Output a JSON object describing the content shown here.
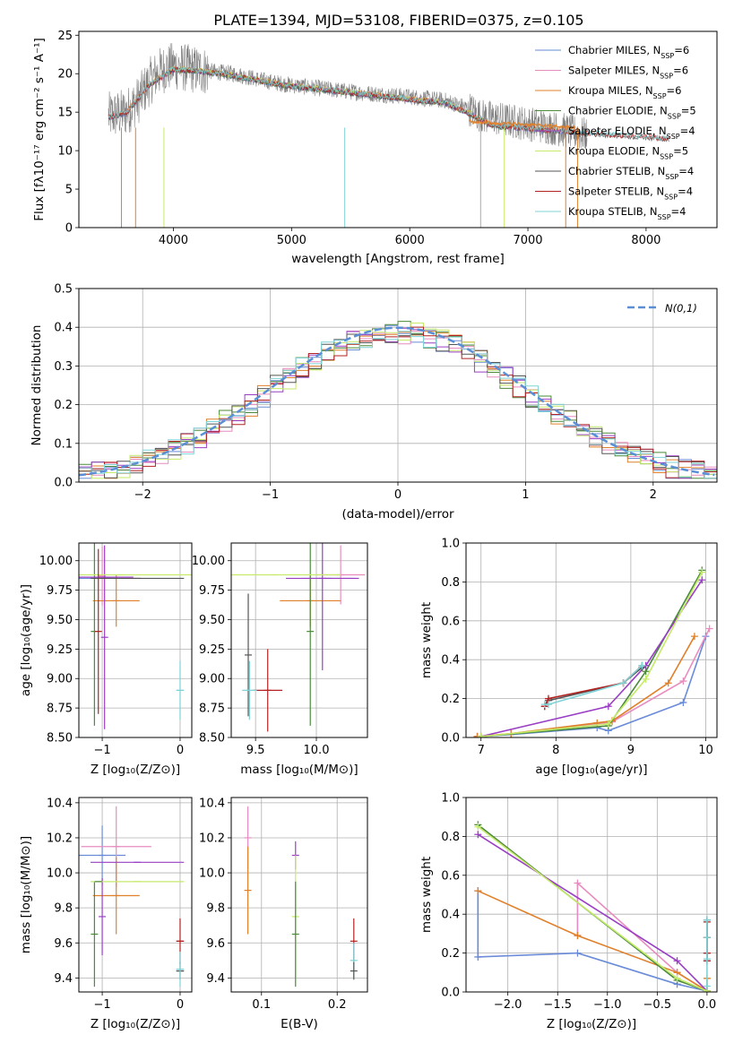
{
  "page": {
    "title": "PLATE=1394, MJD=53108, FIBERID=0375, z=0.105"
  },
  "colors": {
    "Chabrier MILES": "#6a8bd8",
    "Salpeter MILES": "#e88cbf",
    "Kroupa MILES": "#e0802a",
    "Chabrier ELODIE": "#4a8a3a",
    "Salpeter ELODIE": "#9a3fc4",
    "Kroupa ELODIE": "#c6ea6a",
    "Chabrier STELIB": "#555555",
    "Salpeter STELIB": "#b22222",
    "Kroupa STELIB": "#7fd3d6",
    "data": "#808080",
    "normal": "#5a8fd6",
    "grid": "#b0b0b0"
  },
  "chart_data": [
    {
      "id": "spectrum",
      "type": "line",
      "title": "",
      "xlabel": "wavelength [Angstrom, rest frame]",
      "ylabel": "Flux [fλ10⁻¹⁷ erg cm⁻² s⁻¹ A⁻¹]",
      "xlim": [
        3200,
        8600
      ],
      "ylim": [
        0,
        25.5
      ],
      "xticks": [
        4000,
        5000,
        6000,
        7000,
        8000
      ],
      "yticks": [
        0,
        5,
        10,
        15,
        20,
        25
      ],
      "grid": false,
      "legend_position": "top-right",
      "legend": [
        "Chabrier MILES, N_SSP=6",
        "Salpeter MILES, N_SSP=6",
        "Kroupa MILES, N_SSP=6",
        "Chabrier ELODIE, N_SSP=5",
        "Salpeter ELODIE, N_SSP=4",
        "Kroupa ELODIE, N_SSP=5",
        "Chabrier STELIB, N_SSP=4",
        "Salpeter STELIB, N_SSP=4",
        "Kroupa STELIB, N_SSP=4"
      ],
      "continuum": {
        "x": [
          3450,
          3600,
          3700,
          3800,
          3900,
          4000,
          4200,
          4500,
          4800,
          5000,
          5300,
          5600,
          6000,
          6300,
          6500,
          6600,
          6800,
          7000,
          7200,
          7500
        ],
        "y": [
          14.5,
          15,
          16.5,
          19,
          20.5,
          21,
          20.5,
          20,
          19,
          18.5,
          18,
          17.5,
          17,
          16.5,
          15.5,
          14.5,
          14,
          13.5,
          13,
          12
        ]
      },
      "model_continuum": {
        "x": [
          3450,
          3600,
          3800,
          4000,
          4200,
          4500,
          4800,
          5000,
          5300,
          5600,
          6000,
          6300,
          6500,
          6700,
          7000,
          7500,
          8200
        ],
        "y": [
          14.3,
          14.8,
          18.5,
          20.5,
          20.3,
          19.7,
          18.8,
          18.3,
          17.8,
          17.3,
          16.6,
          16.1,
          14.8,
          13.2,
          12.8,
          12.2,
          11.5
        ]
      },
      "kroupa_miles_red": {
        "x": [
          6500,
          6700,
          7000,
          7200,
          7400
        ],
        "y": [
          13.8,
          13.6,
          13.4,
          13.2,
          13.0
        ]
      }
    },
    {
      "id": "residuals",
      "type": "line",
      "title": "",
      "xlabel": "(data-model)/error",
      "ylabel": "Normed distribution",
      "xlim": [
        -2.5,
        2.5
      ],
      "ylim": [
        0,
        0.5
      ],
      "xticks": [
        -2,
        -1,
        0,
        1,
        2
      ],
      "yticks": [
        0.0,
        0.1,
        0.2,
        0.3,
        0.4,
        0.5
      ],
      "grid": true,
      "legend_position": "top-right",
      "legend": [
        "N(0,1)"
      ],
      "bin_width": 0.1
    },
    {
      "id": "age-Z",
      "type": "scatter",
      "title": "",
      "xlabel": "Z [log₁₀(Z/Z⊙)]",
      "ylabel": "age  [log₁₀(age/yr)]",
      "xlim": [
        -1.3,
        0.15
      ],
      "ylim": [
        8.5,
        10.15
      ],
      "xticks": [
        -1,
        0
      ],
      "yticks": [
        8.5,
        8.75,
        9.0,
        9.25,
        9.5,
        9.75,
        10.0
      ],
      "grid": true,
      "points": [
        {
          "model": "Chabrier MILES",
          "x": -1.05,
          "y": 9.85,
          "xerr": 0.25,
          "yerr": 0.0
        },
        {
          "model": "Salpeter MILES",
          "x": -1.0,
          "y": 9.87,
          "xerr": 0.0,
          "yerr": 0.25
        },
        {
          "model": "Kroupa MILES",
          "x": -0.82,
          "y": 9.66,
          "xerr": 0.3,
          "yerr": 0.22
        },
        {
          "model": "Chabrier ELODIE",
          "x": -1.1,
          "y": 9.4,
          "xerr": 0.0,
          "yerr": 0.8
        },
        {
          "model": "Salpeter ELODIE",
          "x": -0.95,
          "y": 9.86,
          "xerr": 0.35,
          "yerr": 0.0
        },
        {
          "model": "Salpeter ELODIE",
          "x": -0.97,
          "y": 9.35,
          "xerr": 0.0,
          "yerr": 0.78
        },
        {
          "model": "Kroupa ELODIE",
          "x": -0.75,
          "y": 9.88,
          "xerr": 0.92,
          "yerr": 0.0
        },
        {
          "model": "Chabrier STELIB",
          "x": -0.55,
          "y": 9.85,
          "xerr": 0.6,
          "yerr": 0.0
        },
        {
          "model": "Salpeter STELIB",
          "x": -1.05,
          "y": 9.4,
          "xerr": 0.0,
          "yerr": 0.7
        },
        {
          "model": "Kroupa STELIB",
          "x": 0.0,
          "y": 8.9,
          "xerr": 0.05,
          "yerr": 0.25
        }
      ]
    },
    {
      "id": "age-mass",
      "type": "scatter",
      "title": "",
      "xlabel": "mass [log₁₀(M/M⊙)]",
      "ylabel": "",
      "xlim": [
        9.3,
        10.42
      ],
      "ylim": [
        8.5,
        10.15
      ],
      "xticks": [
        9.5,
        10.0
      ],
      "yticks": [
        8.5,
        8.75,
        9.0,
        9.25,
        9.5,
        9.75,
        10.0
      ],
      "grid": true,
      "points": [
        {
          "model": "Chabrier MILES",
          "x": 10.1,
          "y": 9.85,
          "xerr": 0.22,
          "yerr": 0.0
        },
        {
          "model": "Salpeter MILES",
          "x": 10.2,
          "y": 9.88,
          "xerr": 0.2,
          "yerr": 0.25
        },
        {
          "model": "Kroupa MILES",
          "x": 9.95,
          "y": 9.66,
          "xerr": 0.25,
          "yerr": 0.22
        },
        {
          "model": "Chabrier ELODIE",
          "x": 9.95,
          "y": 9.4,
          "xerr": 0.0,
          "yerr": 0.8
        },
        {
          "model": "Salpeter ELODIE",
          "x": 10.05,
          "y": 9.85,
          "xerr": 0.3,
          "yerr": 0.78
        },
        {
          "model": "Kroupa ELODIE",
          "x": 9.65,
          "y": 9.88,
          "xerr": 0.55,
          "yerr": 0.0
        },
        {
          "model": "Chabrier STELIB",
          "x": 9.44,
          "y": 9.2,
          "xerr": 0.0,
          "yerr": 0.52
        },
        {
          "model": "Salpeter STELIB",
          "x": 9.6,
          "y": 8.9,
          "xerr": 0.12,
          "yerr": 0.35
        },
        {
          "model": "Kroupa STELIB",
          "x": 9.45,
          "y": 8.9,
          "xerr": 0.06,
          "yerr": 0.25
        }
      ]
    },
    {
      "id": "massweight-age",
      "type": "line",
      "title": "",
      "xlabel": "age  [log₁₀(age/yr)]",
      "ylabel": "mass weight",
      "xlim": [
        6.8,
        10.15
      ],
      "ylim": [
        0,
        1
      ],
      "xticks": [
        7,
        8,
        9,
        10
      ],
      "yticks": [
        0.0,
        0.2,
        0.4,
        0.6,
        0.8,
        1.0
      ],
      "grid": true,
      "series": [
        {
          "name": "Chabrier MILES",
          "x": [
            6.95,
            7.4,
            8.55,
            8.7,
            9.7,
            10.0
          ],
          "y": [
            0.005,
            0.015,
            0.05,
            0.035,
            0.18,
            0.52
          ]
        },
        {
          "name": "Salpeter MILES",
          "x": [
            6.95,
            7.4,
            8.55,
            8.75,
            9.7,
            10.05
          ],
          "y": [
            0.005,
            0.02,
            0.07,
            0.08,
            0.29,
            0.56
          ]
        },
        {
          "name": "Kroupa MILES",
          "x": [
            6.95,
            7.4,
            8.55,
            8.75,
            9.5,
            9.85
          ],
          "y": [
            0.005,
            0.02,
            0.075,
            0.085,
            0.28,
            0.52
          ]
        },
        {
          "name": "Chabrier ELODIE",
          "x": [
            7.0,
            8.7,
            9.2,
            9.95
          ],
          "y": [
            0.005,
            0.06,
            0.34,
            0.86
          ]
        },
        {
          "name": "Salpeter ELODIE",
          "x": [
            7.0,
            8.7,
            9.2,
            9.95
          ],
          "y": [
            0.005,
            0.16,
            0.37,
            0.81
          ]
        },
        {
          "name": "Kroupa ELODIE",
          "x": [
            7.0,
            8.7,
            9.2,
            9.95
          ],
          "y": [
            0.005,
            0.07,
            0.3,
            0.85
          ]
        },
        {
          "name": "Chabrier STELIB",
          "x": [
            7.85,
            7.9,
            8.9,
            9.15
          ],
          "y": [
            0.16,
            0.19,
            0.28,
            0.36
          ]
        },
        {
          "name": "Salpeter STELIB",
          "x": [
            7.85,
            7.9,
            8.9,
            9.15
          ],
          "y": [
            0.16,
            0.2,
            0.28,
            0.37
          ]
        },
        {
          "name": "Kroupa STELIB",
          "x": [
            7.85,
            7.9,
            8.9,
            9.15
          ],
          "y": [
            0.17,
            0.17,
            0.28,
            0.37
          ]
        }
      ]
    },
    {
      "id": "mass-Z",
      "type": "scatter",
      "title": "",
      "xlabel": "Z [log₁₀(Z/Z⊙)]",
      "ylabel": "mass [log₁₀(M/M⊙)]",
      "xlim": [
        -1.3,
        0.15
      ],
      "ylim": [
        9.32,
        10.43
      ],
      "xticks": [
        -1,
        0
      ],
      "yticks": [
        9.4,
        9.6,
        9.8,
        10.0,
        10.2,
        10.4
      ],
      "grid": true,
      "points": [
        {
          "model": "Chabrier MILES",
          "x": -1.0,
          "y": 10.1,
          "xerr": 0.3,
          "yerr": 0.17
        },
        {
          "model": "Salpeter MILES",
          "x": -0.82,
          "y": 10.15,
          "xerr": 0.45,
          "yerr": 0.23
        },
        {
          "model": "Kroupa MILES",
          "x": -0.82,
          "y": 9.87,
          "xerr": 0.3,
          "yerr": 0.22
        },
        {
          "model": "Chabrier ELODIE",
          "x": -1.1,
          "y": 9.65,
          "xerr": 0.0,
          "yerr": 0.3
        },
        {
          "model": "Salpeter ELODIE",
          "x": -1.0,
          "y": 9.75,
          "xerr": 0.0,
          "yerr": 0.22
        },
        {
          "model": "Salpeter ELODIE",
          "x": -0.55,
          "y": 10.06,
          "xerr": 0.6,
          "yerr": 0.0
        },
        {
          "model": "Kroupa ELODIE",
          "x": -0.55,
          "y": 9.95,
          "xerr": 0.6,
          "yerr": 0.0
        },
        {
          "model": "Chabrier ELODIE",
          "x": -1.05,
          "y": 9.95,
          "xerr": 0.0,
          "yerr": 0.0
        },
        {
          "model": "Chabrier STELIB",
          "x": 0.0,
          "y": 9.44,
          "xerr": 0.05,
          "yerr": 0.05
        },
        {
          "model": "Salpeter STELIB",
          "x": 0.0,
          "y": 9.61,
          "xerr": 0.05,
          "yerr": 0.13
        },
        {
          "model": "Kroupa STELIB",
          "x": 0.0,
          "y": 9.45,
          "xerr": 0.05,
          "yerr": 0.1
        }
      ]
    },
    {
      "id": "mass-EBV",
      "type": "scatter",
      "title": "",
      "xlabel": "E(B-V)",
      "ylabel": "",
      "xlim": [
        0.06,
        0.24
      ],
      "ylim": [
        9.32,
        10.43
      ],
      "xticks": [
        0.1,
        0.2
      ],
      "yticks": [
        9.4,
        9.6,
        9.8,
        10.0,
        10.2,
        10.4
      ],
      "grid": true,
      "points": [
        {
          "model": "Salpeter MILES",
          "x": 0.082,
          "y": 10.2,
          "xerr": 0,
          "yerr": 0.18
        },
        {
          "model": "Kroupa MILES",
          "x": 0.082,
          "y": 9.9,
          "xerr": 0,
          "yerr": 0.25
        },
        {
          "model": "Salpeter ELODIE",
          "x": 0.145,
          "y": 10.1,
          "xerr": 0,
          "yerr": 0.08
        },
        {
          "model": "Kroupa ELODIE",
          "x": 0.145,
          "y": 9.75,
          "xerr": 0,
          "yerr": 0.35
        },
        {
          "model": "Chabrier ELODIE",
          "x": 0.145,
          "y": 9.65,
          "xerr": 0,
          "yerr": 0.3
        },
        {
          "model": "Salpeter STELIB",
          "x": 0.222,
          "y": 9.61,
          "xerr": 0,
          "yerr": 0.13
        },
        {
          "model": "Kroupa STELIB",
          "x": 0.222,
          "y": 9.5,
          "xerr": 0,
          "yerr": 0.1
        },
        {
          "model": "Chabrier STELIB",
          "x": 0.222,
          "y": 9.44,
          "xerr": 0,
          "yerr": 0.05
        }
      ]
    },
    {
      "id": "massweight-Z",
      "type": "line",
      "title": "",
      "xlabel": "Z [log₁₀(Z/Z⊙)]",
      "ylabel": "mass weight",
      "xlim": [
        -2.42,
        0.1
      ],
      "ylim": [
        0,
        1
      ],
      "xticks": [
        -2.0,
        -1.5,
        -1.0,
        -0.5,
        0.0
      ],
      "yticks": [
        0.0,
        0.2,
        0.4,
        0.6,
        0.8,
        1.0
      ],
      "grid": true,
      "series": [
        {
          "name": "Chabrier MILES",
          "x": [
            -2.3,
            -2.3,
            -1.3,
            -0.3,
            0.0
          ],
          "y": [
            0.52,
            0.18,
            0.2,
            0.04,
            0.005
          ]
        },
        {
          "name": "Salpeter MILES",
          "x": [
            -1.3,
            -1.3,
            -0.3,
            0.0
          ],
          "y": [
            0.29,
            0.56,
            0.1,
            0.005
          ]
        },
        {
          "name": "Kroupa MILES",
          "x": [
            -2.3,
            -1.3,
            -0.3,
            0.0,
            0.0
          ],
          "y": [
            0.52,
            0.29,
            0.1,
            0.005,
            0.07
          ]
        },
        {
          "name": "Chabrier ELODIE",
          "x": [
            -2.3,
            -0.3,
            0.0
          ],
          "y": [
            0.86,
            0.06,
            0.005
          ]
        },
        {
          "name": "Salpeter ELODIE",
          "x": [
            -2.3,
            -0.3,
            0.0
          ],
          "y": [
            0.81,
            0.16,
            0.005
          ]
        },
        {
          "name": "Kroupa ELODIE",
          "x": [
            -2.3,
            -0.3,
            0.0
          ],
          "y": [
            0.85,
            0.07,
            0.005
          ]
        },
        {
          "name": "Chabrier STELIB",
          "x": [
            0.0,
            0.0,
            0.0,
            0.0
          ],
          "y": [
            0.37,
            0.28,
            0.2,
            0.16
          ]
        },
        {
          "name": "Salpeter STELIB",
          "x": [
            0.0,
            0.0,
            0.0,
            0.0
          ],
          "y": [
            0.36,
            0.28,
            0.2,
            0.16
          ]
        },
        {
          "name": "Kroupa STELIB",
          "x": [
            0.0,
            0.0,
            0.0,
            0.0
          ],
          "y": [
            0.37,
            0.28,
            0.17,
            0.03
          ]
        }
      ]
    }
  ]
}
